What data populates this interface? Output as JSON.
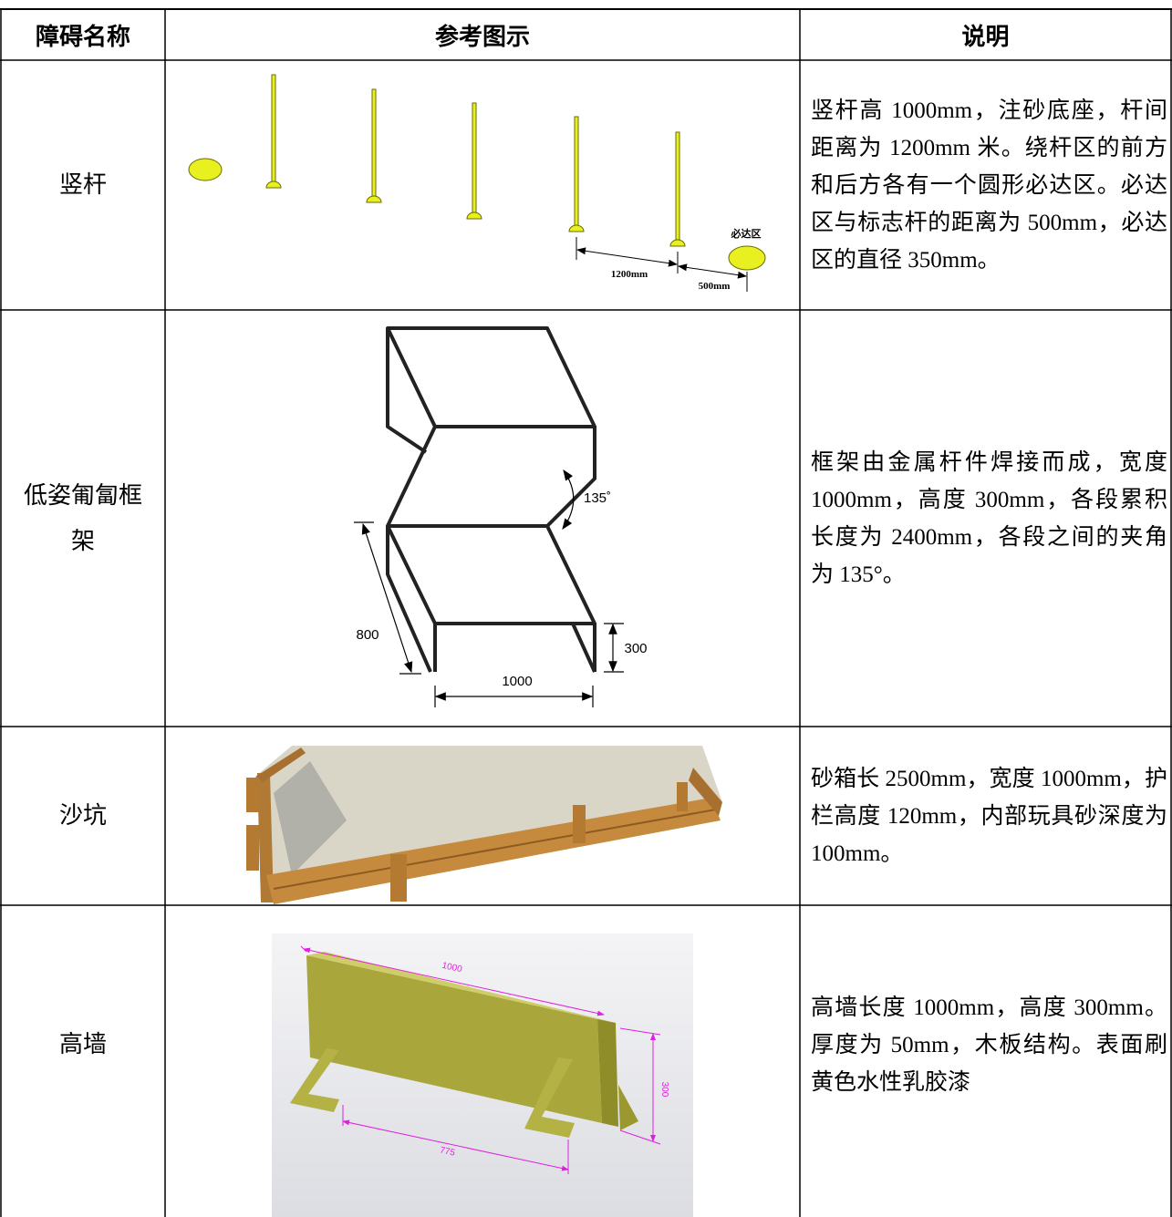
{
  "table": {
    "header": [
      "障碍名称",
      "参考图示",
      "说明"
    ],
    "rows": [
      {
        "name": "竖杆",
        "figure_labels": [
          "必达区",
          "1200mm",
          "500mm"
        ],
        "description": "竖杆高 1000mm，注砂底座，杆间距离为 1200mm 米。绕杆区的前方和后方各有一个圆形必达区。必达区与标志杆的距离为 500mm，必达区的直径 350mm。"
      },
      {
        "name": "低姿匍匐框架",
        "figure_labels": [
          "135˚",
          "800",
          "1000",
          "300"
        ],
        "description": "框架由金属杆件焊接而成，宽度 1000mm，高度 300mm，各段累积长度为 2400mm，各段之间的夹角为 135°。"
      },
      {
        "name": "沙坑",
        "description": "砂箱长 2500mm，宽度 1000mm，护栏高度 120mm，内部玩具砂深度为 100mm。"
      },
      {
        "name": "高墙",
        "figure_labels": [
          "1000",
          "775",
          "300"
        ],
        "description": "高墙长度 1000mm，高度 300mm。厚度为 50mm，木板结构。表面刷黄色水性乳胶漆"
      }
    ]
  }
}
